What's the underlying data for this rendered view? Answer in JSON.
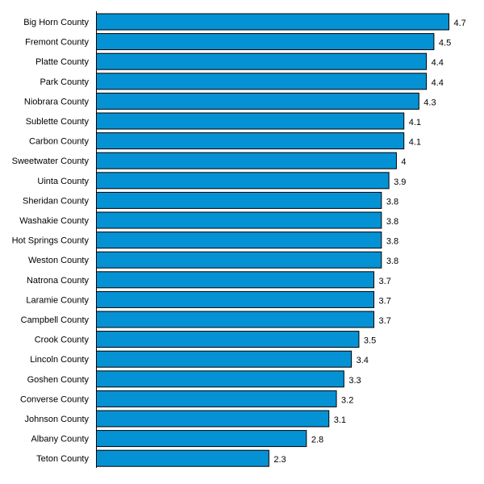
{
  "chart_data": {
    "type": "bar",
    "orientation": "horizontal",
    "title": "",
    "xlabel": "",
    "ylabel": "",
    "categories": [
      "Big Horn County",
      "Fremont County",
      "Platte County",
      "Park County",
      "Niobrara County",
      "Sublette County",
      "Carbon County",
      "Sweetwater County",
      "Uinta County",
      "Sheridan County",
      "Washakie County",
      "Hot Springs County",
      "Weston County",
      "Natrona County",
      "Laramie County",
      "Campbell County",
      "Crook County",
      "Lincoln County",
      "Goshen County",
      "Converse County",
      "Johnson County",
      "Albany County",
      "Teton County"
    ],
    "values": [
      4.7,
      4.5,
      4.4,
      4.4,
      4.3,
      4.1,
      4.1,
      4,
      3.9,
      3.8,
      3.8,
      3.8,
      3.8,
      3.7,
      3.7,
      3.7,
      3.5,
      3.4,
      3.3,
      3.2,
      3.1,
      2.8,
      2.3
    ],
    "value_labels": [
      "4.7",
      "4.5",
      "4.4",
      "4.4",
      "4.3",
      "4.1",
      "4.1",
      "4",
      "3.9",
      "3.8",
      "3.8",
      "3.8",
      "3.8",
      "3.7",
      "3.7",
      "3.7",
      "3.5",
      "3.4",
      "3.3",
      "3.2",
      "3.1",
      "2.8",
      "2.3"
    ],
    "xlim": [
      0,
      4.7
    ],
    "grid": false,
    "legend": "none",
    "bar_color": "#0592d4",
    "bar_stroke": "#000000"
  }
}
